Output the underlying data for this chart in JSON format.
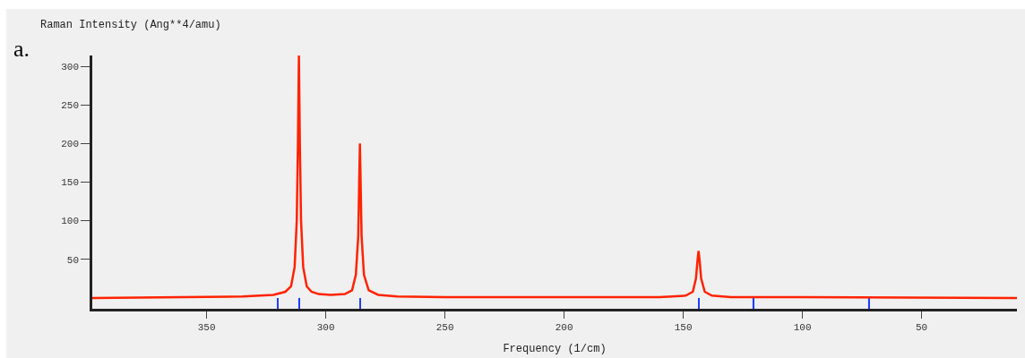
{
  "chart_data": {
    "type": "line",
    "xlabel": "Frequency (1/cm)",
    "ylabel": "Raman Intensity (Ang**4/amu)",
    "annotations": [
      "a."
    ],
    "xlim": [
      398,
      10
    ],
    "ylim": [
      -14,
      314
    ],
    "xticks": [
      350,
      300,
      250,
      200,
      150,
      100,
      50
    ],
    "yticks": [
      50,
      100,
      150,
      200,
      250,
      300
    ],
    "grid": false,
    "marker": "none",
    "line_style": "solid",
    "series": [
      {
        "color": "#ff2200",
        "x": [
          10,
          100,
          130,
          138,
          141,
          142.5,
          143.2,
          143.6,
          144,
          144.7,
          146,
          149,
          160,
          200,
          250,
          270,
          278,
          282,
          284,
          285,
          285.4,
          285.7,
          286,
          286.4,
          287.4,
          289,
          292,
          298,
          303,
          306,
          308,
          309.5,
          310.4,
          310.9,
          311.3,
          311.7,
          312.2,
          313.1,
          314.6,
          317,
          322,
          335,
          360,
          398
        ],
        "values": [
          0,
          1,
          1,
          3,
          8,
          25,
          50,
          61,
          50,
          25,
          8,
          3,
          1,
          1,
          1,
          2,
          4,
          10,
          30,
          80,
          150,
          200,
          150,
          80,
          30,
          10,
          5,
          4,
          5,
          8,
          15,
          40,
          100,
          200,
          314,
          200,
          100,
          40,
          15,
          8,
          4,
          2,
          1,
          0
        ]
      },
      {
        "type": "bar",
        "color": "#1f3fff",
        "x": [
          320.3,
          311.3,
          285.7,
          143.6,
          120.7,
          72.2
        ],
        "base": [
          -14,
          -14,
          -14,
          -14,
          -14,
          -14
        ],
        "values": [
          14,
          14,
          14,
          14,
          14,
          14
        ]
      }
    ]
  }
}
